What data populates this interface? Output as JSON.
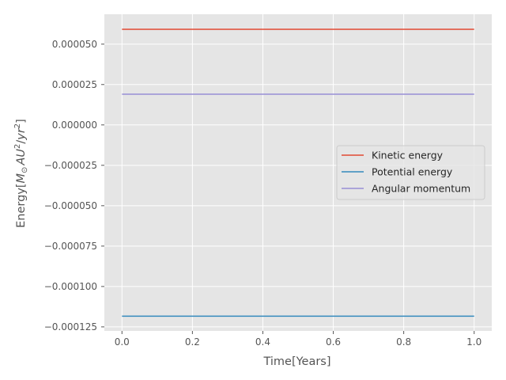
{
  "chart_data": {
    "type": "line",
    "title": "",
    "xlabel": "Time[Years]",
    "ylabel": "Energy[$M_\\odot AU^2/yr^2$]",
    "ylabel_parts": {
      "prefix": "Energy[",
      "m": "M",
      "sun": "⊙",
      "au": "AU",
      "exp1": "2",
      "slash": "/",
      "yr": "yr",
      "exp2": "2",
      "suffix": "]"
    },
    "xlim": [
      -0.05,
      1.05
    ],
    "ylim": [
      -0.0001275,
      6.85e-05
    ],
    "x_ticks": [
      0.0,
      0.2,
      0.4,
      0.6,
      0.8,
      1.0
    ],
    "x_tick_labels": [
      "0.0",
      "0.2",
      "0.4",
      "0.6",
      "0.8",
      "1.0"
    ],
    "y_ticks": [
      5e-05,
      2.5e-05,
      0.0,
      -2.5e-05,
      -5e-05,
      -7.5e-05,
      -0.0001,
      -0.000125
    ],
    "y_tick_labels": [
      "0.000050",
      "0.000025",
      "0.000000",
      "−0.000025",
      "−0.000050",
      "−0.000075",
      "−0.000100",
      "−0.000125"
    ],
    "grid": true,
    "legend_position": "center-right",
    "series": [
      {
        "name": "Kinetic energy",
        "color": "#E24A33",
        "x": [
          0.0,
          1.0
        ],
        "y": [
          5.92e-05,
          5.92e-05
        ]
      },
      {
        "name": "Potential energy",
        "color": "#348ABD",
        "x": [
          0.0,
          1.0
        ],
        "y": [
          -0.0001184,
          -0.0001184
        ]
      },
      {
        "name": "Angular momentum",
        "color": "#988ED5",
        "x": [
          0.0,
          1.0
        ],
        "y": [
          1.9e-05,
          1.9e-05
        ]
      }
    ],
    "style": {
      "plot_background": "#E5E5E5",
      "grid_color": "#FFFFFF",
      "text_color": "#555555"
    }
  }
}
